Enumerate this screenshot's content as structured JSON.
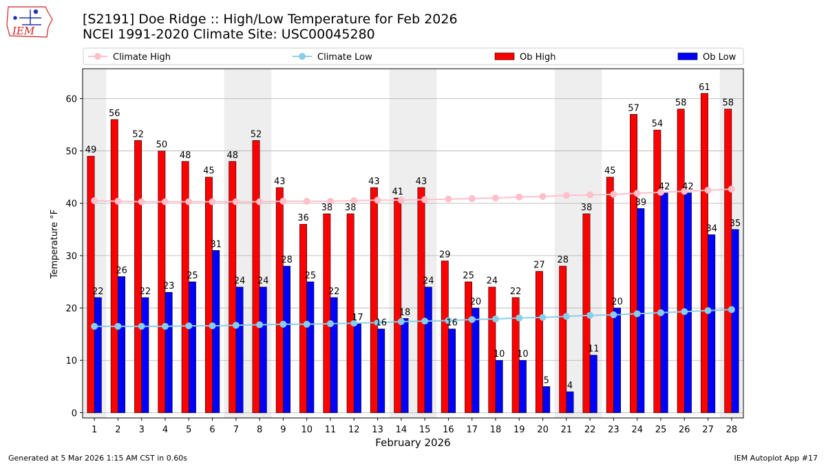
{
  "header": {
    "title": "[S2191] Doe Ridge :: High/Low Temperature for Feb 2026",
    "subtitle": "NCEI 1991-2020 Climate Site: USC00045280",
    "logo_text": "IEM"
  },
  "footer": {
    "generated": "Generated at 5 Mar 2026 1:15 AM CST in 0.60s",
    "app": "IEM Autoplot App #17"
  },
  "colors": {
    "climate_high": "#ffc0cb",
    "climate_low": "#87ceeb",
    "ob_high": "#ff0000",
    "ob_low": "#0000ff",
    "weekend_shade": "#eeeeee",
    "grid": "#b0b0b0"
  },
  "chart_data": {
    "type": "bar",
    "xlabel": "February 2026",
    "ylabel": "Temperature °F",
    "ylim": [
      -1,
      65.7
    ],
    "yticks": [
      0,
      10,
      20,
      30,
      40,
      50,
      60
    ],
    "grid": "horizontal",
    "legend": {
      "position": "top, above plot",
      "entries": [
        "Climate High",
        "Climate Low",
        "Ob High",
        "Ob Low"
      ]
    },
    "categories": [
      "1",
      "2",
      "3",
      "4",
      "5",
      "6",
      "7",
      "8",
      "9",
      "10",
      "11",
      "12",
      "13",
      "14",
      "15",
      "16",
      "17",
      "18",
      "19",
      "20",
      "21",
      "22",
      "23",
      "24",
      "25",
      "26",
      "27",
      "28"
    ],
    "shaded_days": [
      1,
      7,
      8,
      14,
      15,
      21,
      22,
      28
    ],
    "series": [
      {
        "name": "Ob High",
        "kind": "bar",
        "color": "#ff0000",
        "values": [
          49,
          56,
          52,
          50,
          48,
          45,
          48,
          52,
          43,
          36,
          38,
          38,
          43,
          41,
          43,
          29,
          25,
          24,
          22,
          27,
          28,
          38,
          45,
          57,
          54,
          58,
          61,
          58
        ],
        "labels": [
          "49",
          "56",
          "52",
          "50",
          "48",
          "45",
          "48",
          "52",
          "43",
          "36",
          "38",
          "38",
          "43",
          "41",
          "43",
          "29",
          "25",
          "24",
          "22",
          "27",
          "28",
          "38",
          "45",
          "57",
          "54",
          "58",
          "61",
          "58"
        ]
      },
      {
        "name": "Ob Low",
        "kind": "bar",
        "color": "#0000ff",
        "values": [
          22,
          26,
          22,
          23,
          25,
          31,
          24,
          24,
          28,
          25,
          22,
          17,
          16,
          18,
          24,
          16,
          20,
          10,
          10,
          5,
          4,
          11,
          20,
          39,
          42,
          42,
          34,
          35
        ],
        "labels": [
          "22",
          "26",
          "22",
          "23",
          "25",
          "31",
          "24",
          "24",
          "28",
          "25",
          "22",
          "17",
          "16",
          "18",
          "24",
          "16",
          "20",
          "10",
          "10",
          "5",
          "4",
          "11",
          "20",
          "39",
          "42",
          "42",
          "34",
          "35"
        ]
      },
      {
        "name": "Climate High",
        "kind": "line",
        "color": "#ffc0cb",
        "values": [
          40.5,
          40.4,
          40.3,
          40.3,
          40.3,
          40.3,
          40.3,
          40.3,
          40.4,
          40.4,
          40.4,
          40.5,
          40.6,
          40.6,
          40.7,
          40.8,
          40.9,
          41.0,
          41.2,
          41.3,
          41.5,
          41.6,
          41.7,
          41.9,
          42.1,
          42.3,
          42.5,
          42.7
        ]
      },
      {
        "name": "Climate Low",
        "kind": "line",
        "color": "#87ceeb",
        "values": [
          16.5,
          16.5,
          16.5,
          16.5,
          16.6,
          16.6,
          16.7,
          16.8,
          16.9,
          16.9,
          17.0,
          17.1,
          17.2,
          17.4,
          17.5,
          17.6,
          17.8,
          17.9,
          18.1,
          18.2,
          18.4,
          18.6,
          18.7,
          18.9,
          19.1,
          19.3,
          19.5,
          19.7
        ]
      }
    ]
  }
}
